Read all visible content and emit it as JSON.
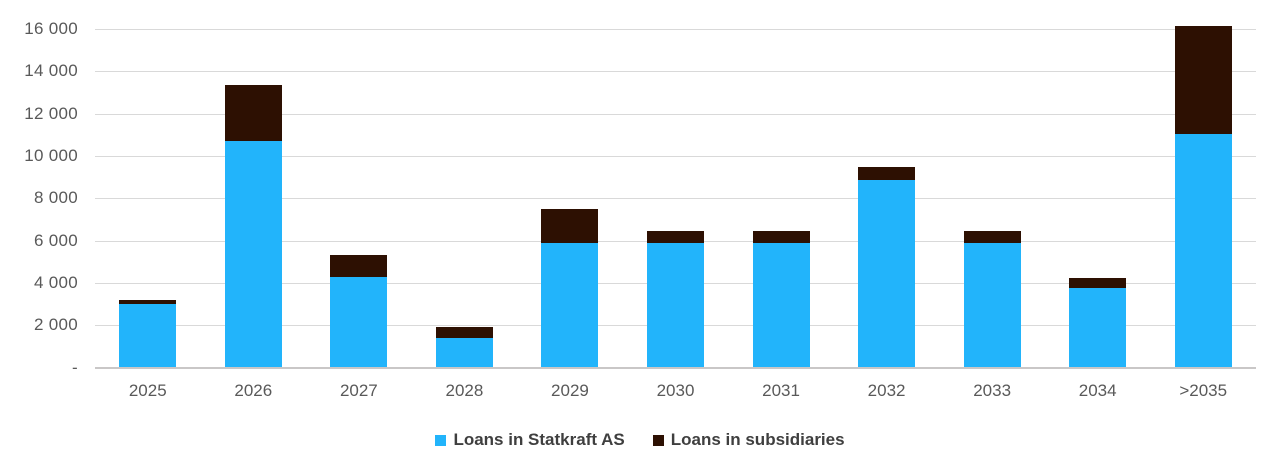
{
  "chart_data": {
    "type": "bar",
    "stacked": true,
    "title": "",
    "xlabel": "",
    "ylabel": "",
    "categories": [
      "2025",
      "2026",
      "2027",
      "2028",
      "2029",
      "2030",
      "2031",
      "2032",
      "2033",
      "2034",
      ">2035"
    ],
    "series": [
      {
        "name": "Loans in Statkraft AS",
        "color": "#22b4fb",
        "values": [
          3000,
          10700,
          4300,
          1400,
          5900,
          5900,
          5900,
          8850,
          5900,
          3750,
          11050
        ]
      },
      {
        "name": "Loans in subsidiaries",
        "color": "#2d1002",
        "values": [
          200,
          2650,
          1000,
          500,
          1600,
          550,
          550,
          650,
          550,
          500,
          5100
        ]
      }
    ],
    "totals": [
      3200,
      13350,
      5300,
      1900,
      7500,
      6450,
      6450,
      9500,
      6450,
      4250,
      16150
    ],
    "ylim": [
      0,
      16000
    ],
    "ytick_step": 2000,
    "ytick_labels": [
      "-",
      "2 000",
      "4 000",
      "6 000",
      "8 000",
      "10 000",
      "12 000",
      "14 000",
      "16 000"
    ],
    "grid": true,
    "legend_position": "bottom",
    "colors": {
      "gridline": "#d9d9d9",
      "axis_line": "#c9c7c7",
      "tick_text": "#595959",
      "legend_text": "#3f3f3f"
    }
  },
  "legend": {
    "items": [
      {
        "label": "Loans in Statkraft AS",
        "color": "#22b4fb",
        "icon": "square-swatch-icon"
      },
      {
        "label": "Loans in subsidiaries",
        "color": "#2d1002",
        "icon": "square-swatch-icon"
      }
    ]
  }
}
